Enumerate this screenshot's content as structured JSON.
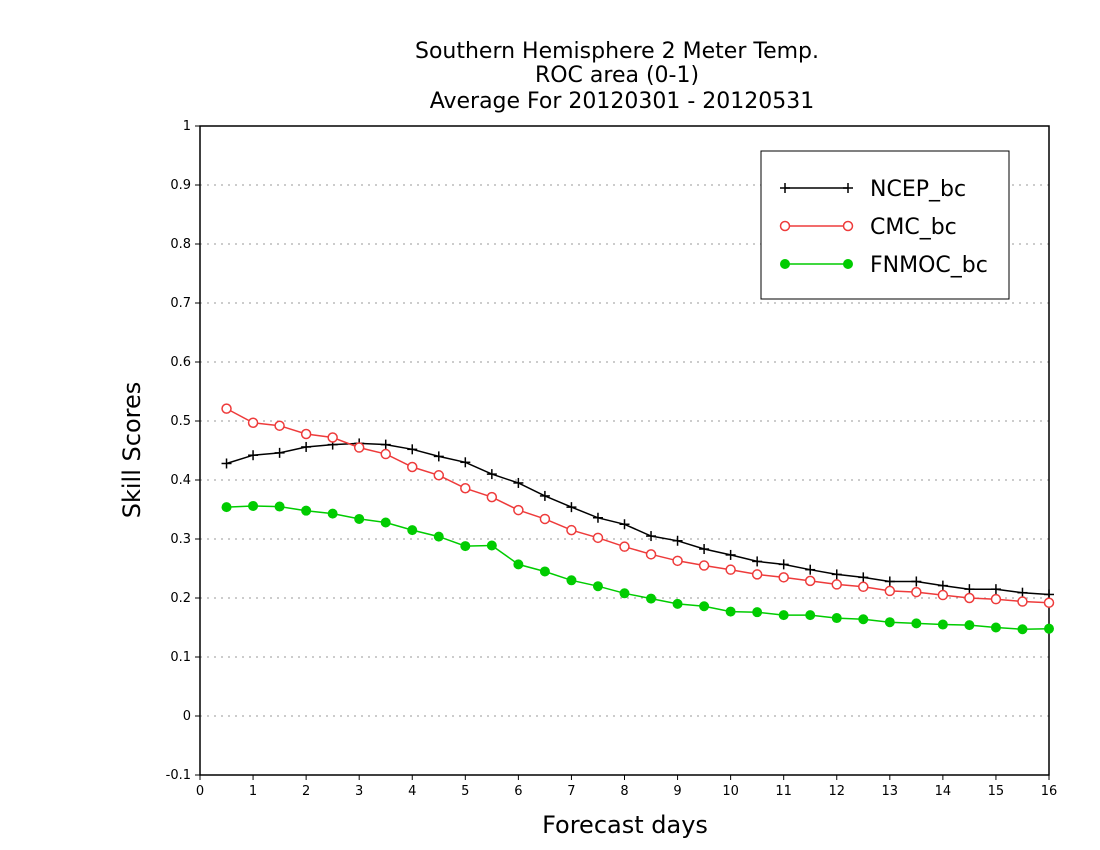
{
  "chart_data": {
    "type": "line",
    "title_lines": [
      "Southern Hemisphere 2 Meter Temp.",
      "ROC area (0-1)",
      "Average For 20120301 - 20120531"
    ],
    "xlabel": "Forecast days",
    "ylabel": "Skill Scores",
    "xlim": [
      0,
      16
    ],
    "ylim": [
      -0.1,
      1
    ],
    "x_ticks": [
      0,
      1,
      2,
      3,
      4,
      5,
      6,
      7,
      8,
      9,
      10,
      11,
      12,
      13,
      14,
      15,
      16
    ],
    "y_ticks": [
      -0.1,
      0,
      0.1,
      0.2,
      0.3,
      0.4,
      0.5,
      0.6,
      0.7,
      0.8,
      0.9,
      1
    ],
    "y_tick_labels": [
      "-0.1",
      "0",
      "0.1",
      "0.2",
      "0.3",
      "0.4",
      "0.5",
      "0.6",
      "0.7",
      "0.8",
      "0.9",
      "1"
    ],
    "grid": "horizontal dotted",
    "legend_position": "top-right",
    "x": [
      0.5,
      1,
      1.5,
      2,
      2.5,
      3,
      3.5,
      4,
      4.5,
      5,
      5.5,
      6,
      6.5,
      7,
      7.5,
      8,
      8.5,
      9,
      9.5,
      10,
      10.5,
      11,
      11.5,
      12,
      12.5,
      13,
      13.5,
      14,
      14.5,
      15,
      15.5,
      16
    ],
    "series": [
      {
        "name": "NCEP_bc",
        "color": "#000000",
        "marker": "plus",
        "values": [
          0.428,
          0.442,
          0.446,
          0.456,
          0.46,
          0.462,
          0.46,
          0.452,
          0.44,
          0.43,
          0.41,
          0.395,
          0.373,
          0.354,
          0.336,
          0.325,
          0.305,
          0.297,
          0.283,
          0.273,
          0.262,
          0.257,
          0.248,
          0.24,
          0.235,
          0.228,
          0.228,
          0.221,
          0.215,
          0.215,
          0.209,
          0.206
        ]
      },
      {
        "name": "CMC_bc",
        "color": "#ee3b3b",
        "marker": "open-circle",
        "values": [
          0.521,
          0.497,
          0.492,
          0.478,
          0.472,
          0.455,
          0.444,
          0.422,
          0.408,
          0.386,
          0.371,
          0.349,
          0.334,
          0.315,
          0.302,
          0.287,
          0.274,
          0.263,
          0.255,
          0.248,
          0.24,
          0.235,
          0.229,
          0.223,
          0.219,
          0.212,
          0.21,
          0.205,
          0.2,
          0.198,
          0.194,
          0.192
        ]
      },
      {
        "name": "FNMOC_bc",
        "color": "#00cc00",
        "marker": "filled-circle",
        "values": [
          0.354,
          0.356,
          0.355,
          0.348,
          0.343,
          0.334,
          0.328,
          0.315,
          0.304,
          0.288,
          0.289,
          0.257,
          0.245,
          0.23,
          0.22,
          0.208,
          0.199,
          0.19,
          0.186,
          0.177,
          0.176,
          0.171,
          0.171,
          0.166,
          0.164,
          0.159,
          0.157,
          0.155,
          0.154,
          0.15,
          0.147,
          0.148
        ]
      }
    ]
  }
}
